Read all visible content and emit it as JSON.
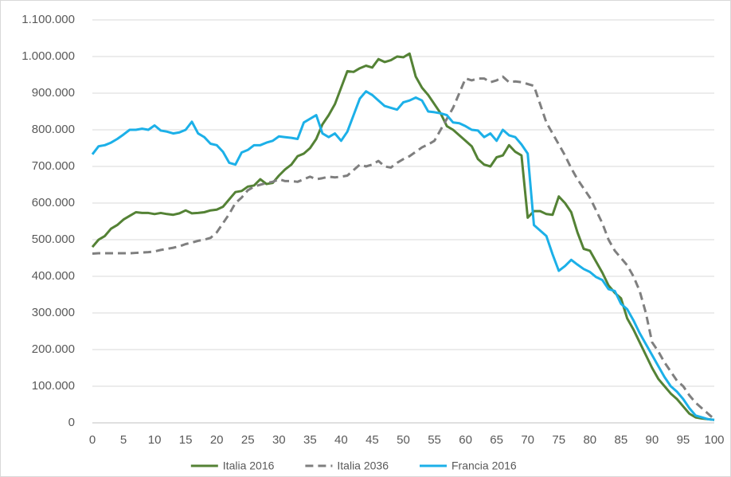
{
  "chart_data": {
    "type": "line",
    "x": [
      0,
      1,
      2,
      3,
      4,
      5,
      6,
      7,
      8,
      9,
      10,
      11,
      12,
      13,
      14,
      15,
      16,
      17,
      18,
      19,
      20,
      21,
      22,
      23,
      24,
      25,
      26,
      27,
      28,
      29,
      30,
      31,
      32,
      33,
      34,
      35,
      36,
      37,
      38,
      39,
      40,
      41,
      42,
      43,
      44,
      45,
      46,
      47,
      48,
      49,
      50,
      51,
      52,
      53,
      54,
      55,
      56,
      57,
      58,
      59,
      60,
      61,
      62,
      63,
      64,
      65,
      66,
      67,
      68,
      69,
      70,
      71,
      72,
      73,
      74,
      75,
      76,
      77,
      78,
      79,
      80,
      81,
      82,
      83,
      84,
      85,
      86,
      87,
      88,
      89,
      90,
      91,
      92,
      93,
      94,
      95,
      96,
      97,
      98,
      99,
      100
    ],
    "series": [
      {
        "name": "Italia 2016",
        "color": "#548235",
        "style": "solid",
        "values": [
          480000,
          500000,
          510000,
          530000,
          540000,
          555000,
          565000,
          575000,
          573000,
          573000,
          570000,
          573000,
          570000,
          568000,
          572000,
          580000,
          572000,
          573000,
          575000,
          580000,
          582000,
          590000,
          610000,
          630000,
          633000,
          645000,
          648000,
          665000,
          652000,
          655000,
          675000,
          692000,
          705000,
          728000,
          735000,
          750000,
          775000,
          815000,
          840000,
          870000,
          915000,
          960000,
          958000,
          968000,
          975000,
          970000,
          993000,
          985000,
          990000,
          1000000,
          998000,
          1008000,
          945000,
          915000,
          895000,
          870000,
          845000,
          810000,
          800000,
          785000,
          770000,
          755000,
          720000,
          705000,
          700000,
          725000,
          730000,
          758000,
          740000,
          730000,
          560000,
          578000,
          578000,
          570000,
          568000,
          618000,
          600000,
          575000,
          520000,
          475000,
          470000,
          440000,
          410000,
          375000,
          355000,
          340000,
          285000,
          255000,
          220000,
          185000,
          150000,
          120000,
          100000,
          80000,
          65000,
          45000,
          25000,
          15000,
          12000,
          10000,
          8000
        ]
      },
      {
        "name": "Italia 2036",
        "color": "#7f7f7f",
        "style": "dashed",
        "values": [
          462000,
          463000,
          463000,
          463000,
          463000,
          463000,
          463000,
          464000,
          465000,
          466000,
          468000,
          472000,
          475000,
          478000,
          482000,
          488000,
          492000,
          497000,
          500000,
          505000,
          520000,
          545000,
          570000,
          600000,
          615000,
          635000,
          645000,
          650000,
          655000,
          658000,
          665000,
          660000,
          660000,
          658000,
          665000,
          672000,
          665000,
          668000,
          672000,
          670000,
          672000,
          675000,
          690000,
          705000,
          700000,
          705000,
          715000,
          700000,
          697000,
          710000,
          720000,
          728000,
          740000,
          752000,
          760000,
          770000,
          800000,
          830000,
          860000,
          900000,
          940000,
          935000,
          940000,
          940000,
          930000,
          935000,
          945000,
          930000,
          932000,
          930000,
          925000,
          920000,
          870000,
          820000,
          790000,
          760000,
          730000,
          695000,
          665000,
          640000,
          615000,
          580000,
          545000,
          500000,
          470000,
          450000,
          430000,
          400000,
          360000,
          300000,
          220000,
          195000,
          165000,
          140000,
          115000,
          100000,
          75000,
          55000,
          40000,
          25000,
          10000
        ]
      },
      {
        "name": "Francia 2016",
        "color": "#1cb0e8",
        "style": "solid",
        "values": [
          733000,
          755000,
          758000,
          765000,
          775000,
          787000,
          800000,
          800000,
          803000,
          800000,
          812000,
          798000,
          795000,
          790000,
          793000,
          800000,
          822000,
          790000,
          780000,
          762000,
          758000,
          740000,
          710000,
          705000,
          738000,
          745000,
          758000,
          758000,
          765000,
          770000,
          782000,
          780000,
          778000,
          775000,
          820000,
          830000,
          840000,
          790000,
          780000,
          790000,
          770000,
          795000,
          840000,
          885000,
          905000,
          895000,
          880000,
          865000,
          860000,
          855000,
          875000,
          880000,
          888000,
          880000,
          850000,
          848000,
          845000,
          840000,
          820000,
          818000,
          810000,
          800000,
          798000,
          780000,
          790000,
          770000,
          800000,
          785000,
          780000,
          760000,
          735000,
          540000,
          525000,
          510000,
          460000,
          415000,
          428000,
          445000,
          432000,
          420000,
          412000,
          398000,
          390000,
          365000,
          360000,
          325000,
          310000,
          280000,
          245000,
          215000,
          185000,
          155000,
          125000,
          100000,
          85000,
          65000,
          40000,
          20000,
          15000,
          10000,
          8000
        ]
      }
    ],
    "xlim": [
      0,
      100
    ],
    "xticks": [
      0,
      5,
      10,
      15,
      20,
      25,
      30,
      35,
      40,
      45,
      50,
      55,
      60,
      65,
      70,
      75,
      80,
      85,
      90,
      95,
      100
    ],
    "ylim": [
      0,
      1100000
    ],
    "yticks": [
      0,
      {
        "value": 100000,
        "label": "100.000"
      },
      {
        "value": 200000,
        "label": "200.000"
      },
      {
        "value": 300000,
        "label": "300.000"
      },
      {
        "value": 400000,
        "label": "400.000"
      },
      {
        "value": 500000,
        "label": "500.000"
      },
      {
        "value": 600000,
        "label": "600.000"
      },
      {
        "value": 700000,
        "label": "700.000"
      },
      {
        "value": 800000,
        "label": "800.000"
      },
      {
        "value": 900000,
        "label": "900.000"
      },
      {
        "value": 1000000,
        "label": "1.000.000"
      },
      {
        "value": 1100000,
        "label": "1.100.000"
      }
    ],
    "grid": true,
    "legend": "bottom"
  }
}
